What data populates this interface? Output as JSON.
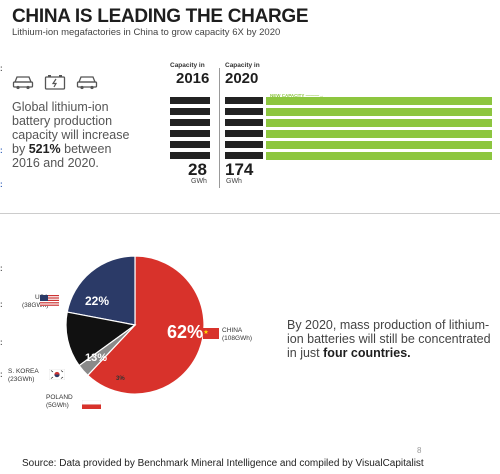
{
  "header": {
    "title": "CHINA IS LEADING THE CHARGE",
    "subtitle": "Lithium-ion megafactories in China to grow capacity 6X by 2020"
  },
  "intro": {
    "line1": "Global lithium-ion",
    "line2": "battery production",
    "line3": "capacity will increase",
    "by": "by ",
    "percent": "521%",
    "between": " between",
    "line5": "2016 and 2020."
  },
  "icons": [
    "car-icon",
    "battery-icon",
    "car-icon"
  ],
  "capacity": {
    "col2016": {
      "label": "Capacity in",
      "year": "2016",
      "value": "28",
      "unit": "GWh"
    },
    "col2020": {
      "label": "Capacity in",
      "year": "2020",
      "value": "174",
      "unit": "GWh"
    },
    "new_capacity_label": "NEW CAPACITY ———→"
  },
  "chart_data": {
    "type": "pie",
    "slices": [
      {
        "label": "CHINA",
        "value": 62,
        "display": "62%",
        "detail": "(108GWh)",
        "color": "#d8322b"
      },
      {
        "label": "USA",
        "value": 22,
        "display": "22%",
        "detail": "(38GWh)",
        "color": "#2b3a67"
      },
      {
        "label": "S. KOREA",
        "value": 13,
        "display": "13%",
        "detail": "(23GWh)",
        "color": "#111111"
      },
      {
        "label": "POLAND",
        "value": 3,
        "display": "3%",
        "detail": "(5GWh)",
        "color": "#8a8a8a"
      }
    ]
  },
  "note": {
    "text": "By 2020, mass production of lithium-ion batteries will still be concentrated in just ",
    "bold": "four countries."
  },
  "page_number": "8",
  "source": "Source: Data provided by Benchmark Mineral Intelligence and compiled by VisualCapitalist"
}
